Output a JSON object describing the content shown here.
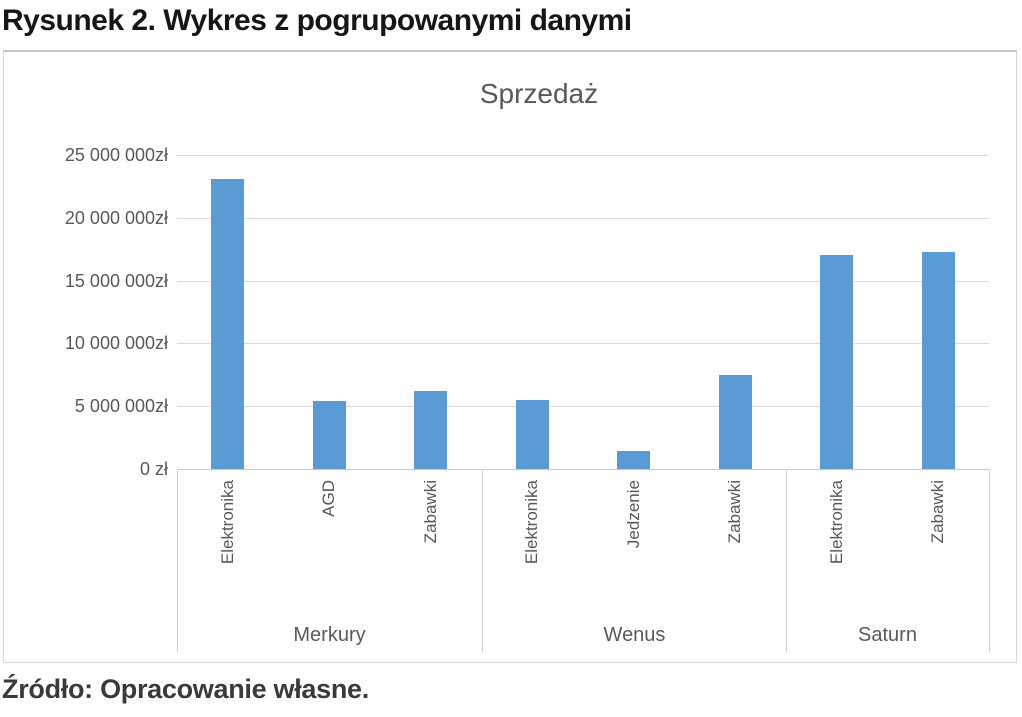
{
  "figure": {
    "caption": "Rysunek 2. Wykres z pogrupowanymi danymi",
    "source": "Źródło: Opracowanie własne."
  },
  "chart_data": {
    "type": "bar",
    "title": "Sprzedaż",
    "y_axis": {
      "tick_labels": [
        "25 000 000zł",
        "20 000 000zł",
        "15 000 000zł",
        "10 000 000zł",
        "5 000 000zł",
        "0 zł"
      ],
      "tick_values": [
        25000000,
        20000000,
        15000000,
        10000000,
        5000000,
        0
      ],
      "max": 25000000,
      "unit": "zł"
    },
    "groups": [
      {
        "label": "Merkury",
        "categories": [
          "Elektronika",
          "AGD",
          "Zabawki"
        ],
        "values": [
          23100000,
          5400000,
          6200000
        ]
      },
      {
        "label": "Wenus",
        "categories": [
          "Elektronika",
          "Jedzenie",
          "Zabawki"
        ],
        "values": [
          5500000,
          1400000,
          7500000
        ]
      },
      {
        "label": "Saturn",
        "categories": [
          "Elektronika",
          "Zabawki"
        ],
        "values": [
          17000000,
          17300000
        ]
      }
    ],
    "bar_color": "#5B9BD5",
    "gridline_color": "#D9D9D9",
    "text_color": "#595959",
    "legend": null,
    "grid": true
  }
}
